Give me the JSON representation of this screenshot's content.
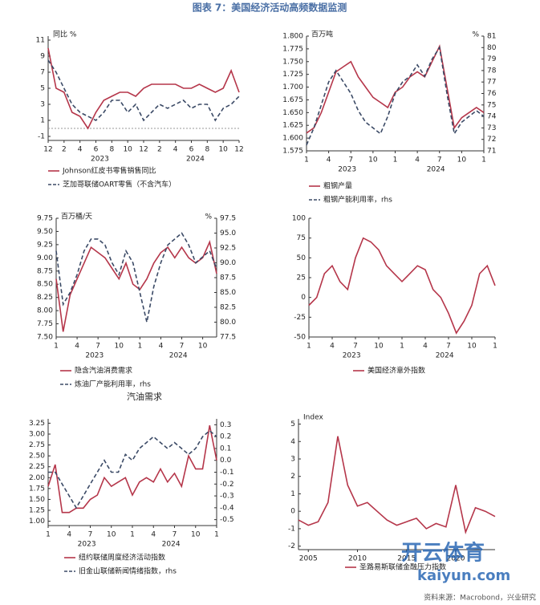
{
  "title": "图表 7：美国经济活动高频数据监测",
  "caption": "汽油需求",
  "source": "资料来源：Macrobond，兴业研究",
  "watermark": [
    "开云体育",
    "kaiyun.com"
  ],
  "chart_data": [
    {
      "type": "line",
      "ylabel": "同比 %",
      "zero_line": true,
      "categories": [
        "12",
        null,
        "2",
        null,
        "4",
        null,
        "6",
        null,
        "8",
        null,
        "10",
        null,
        "12",
        null,
        "2",
        null,
        "4",
        null,
        "6",
        null,
        "8",
        null,
        "10",
        null,
        "12"
      ],
      "groups": [
        {
          "label": "2023",
          "span": [
            1,
            12
          ]
        },
        {
          "label": "2024",
          "span": [
            13,
            24
          ]
        }
      ],
      "ylim": [
        -1.5,
        11.5
      ],
      "yticks": [
        -1,
        1,
        3,
        5,
        7,
        9,
        11
      ],
      "series": [
        {
          "name": "Johnson红皮书零售销售同比",
          "color": "#b5364a",
          "values": [
            10,
            5,
            4.5,
            2,
            1.5,
            0,
            2,
            3.5,
            4,
            4.5,
            4.5,
            4,
            5,
            5.5,
            5.5,
            5.5,
            5.5,
            5,
            5,
            5.5,
            5,
            4.5,
            5,
            7.2,
            4.5
          ]
        },
        {
          "name": "芝加哥联储OART零售（不含汽车）",
          "color": "#3b4a66",
          "dash": true,
          "values": [
            8.5,
            7,
            5,
            3,
            2,
            1.5,
            1,
            2,
            3.5,
            3.5,
            2,
            3,
            1,
            2,
            3,
            2.5,
            3,
            3.5,
            2.5,
            3,
            3,
            1,
            2.5,
            3,
            4
          ]
        }
      ]
    },
    {
      "type": "line",
      "ylabel": "百万吨",
      "y2label": "%",
      "categories": [
        "1",
        null,
        null,
        "4",
        null,
        null,
        "7",
        null,
        null,
        "10",
        null,
        null,
        "1",
        null,
        null,
        "4",
        null,
        null,
        "7",
        null,
        null,
        "10",
        null,
        null,
        "1"
      ],
      "groups": [
        {
          "label": "2023",
          "span": [
            0,
            11
          ]
        },
        {
          "label": "2024",
          "span": [
            12,
            23
          ]
        }
      ],
      "ylim": [
        1.575,
        1.8
      ],
      "yticks": [
        1.575,
        {
          "value": 1.6,
          "label": "1.600"
        },
        1.625,
        {
          "value": 1.65,
          "label": "1.650"
        },
        1.675,
        {
          "value": 1.7,
          "label": "1.700"
        },
        1.725,
        {
          "value": 1.75,
          "label": "1.750"
        },
        1.775,
        {
          "value": 1.8,
          "label": "1.800"
        }
      ],
      "y2lim": [
        71,
        81
      ],
      "y2ticks": [
        71,
        72,
        73,
        74,
        75,
        76,
        77,
        78,
        79,
        80,
        81
      ],
      "series": [
        {
          "name": "粗钢产量",
          "color": "#b5364a",
          "values": [
            1.61,
            1.62,
            1.65,
            1.69,
            1.73,
            1.74,
            1.75,
            1.72,
            1.7,
            1.68,
            1.67,
            1.66,
            1.69,
            1.7,
            1.72,
            1.73,
            1.72,
            1.75,
            1.78,
            1.7,
            1.62,
            1.64,
            1.65,
            1.66,
            1.65
          ]
        },
        {
          "name": "粗钢产能利用率，rhs",
          "color": "#3b4a66",
          "dash": true,
          "axis": "y2",
          "values": [
            71.5,
            73,
            75,
            77,
            78,
            77,
            76,
            74.5,
            73.5,
            73,
            72.5,
            74,
            76,
            77,
            77.5,
            78.5,
            77.5,
            79,
            80,
            76,
            72.5,
            73.5,
            74,
            74.5,
            74
          ]
        }
      ]
    },
    {
      "type": "line",
      "ylabel": "百万桶/天",
      "y2label": "%",
      "categories": [
        "1",
        null,
        null,
        "4",
        null,
        null,
        "7",
        null,
        null,
        "10",
        null,
        null,
        "1",
        null,
        null,
        "4",
        null,
        null,
        "7",
        null,
        null,
        "10",
        null,
        null
      ],
      "groups": [
        {
          "label": "2023",
          "span": [
            0,
            11
          ]
        },
        {
          "label": "2024",
          "span": [
            12,
            23
          ]
        }
      ],
      "ylim": [
        7.5,
        9.75
      ],
      "yticks": [
        {
          "value": 7.5,
          "label": "7.50"
        },
        7.75,
        {
          "value": 8,
          "label": "8.00"
        },
        8.25,
        {
          "value": 8.5,
          "label": "8.50"
        },
        8.75,
        {
          "value": 9,
          "label": "9.00"
        },
        9.25,
        {
          "value": 9.5,
          "label": "9.50"
        },
        9.75
      ],
      "y2lim": [
        77.5,
        97.5
      ],
      "y2ticks": [
        77.5,
        {
          "value": 80,
          "label": "80.0"
        },
        82.5,
        {
          "value": 85,
          "label": "85.0"
        },
        87.5,
        {
          "value": 90,
          "label": "90.0"
        },
        92.5,
        {
          "value": 95,
          "label": "95.0"
        },
        97.5
      ],
      "series": [
        {
          "name": "隐含汽油消费需求",
          "color": "#b5364a",
          "values": [
            8.6,
            7.6,
            8.3,
            8.6,
            8.9,
            9.2,
            9.1,
            9,
            8.8,
            8.6,
            8.9,
            8.5,
            8.4,
            8.6,
            8.9,
            9.1,
            9.2,
            9,
            9.2,
            9,
            8.9,
            9,
            9.3,
            8.7
          ]
        },
        {
          "name": "炼油厂产能利用率，rhs",
          "color": "#3b4a66",
          "dash": true,
          "axis": "y2",
          "values": [
            92,
            83,
            85,
            88,
            92,
            94,
            94,
            93,
            90,
            88,
            92,
            90,
            85,
            80,
            86,
            90,
            93,
            94,
            95,
            93,
            90,
            91,
            92,
            89
          ]
        }
      ]
    },
    {
      "type": "line",
      "categories": [
        "1",
        null,
        null,
        "4",
        null,
        null,
        "7",
        null,
        null,
        "10",
        null,
        null,
        "1",
        null,
        null,
        "4",
        null,
        null,
        "7",
        null,
        null,
        "10",
        null,
        null,
        "1"
      ],
      "groups": [
        {
          "label": "2023",
          "span": [
            0,
            11
          ]
        },
        {
          "label": "2024",
          "span": [
            12,
            23
          ]
        }
      ],
      "ylim": [
        -50,
        100
      ],
      "yticks": [
        -50,
        -25,
        0,
        25,
        50,
        75,
        100
      ],
      "series": [
        {
          "name": "美国经济意外指数",
          "color": "#b5364a",
          "values": [
            -10,
            0,
            30,
            40,
            20,
            10,
            50,
            75,
            70,
            60,
            40,
            30,
            20,
            30,
            40,
            35,
            10,
            0,
            -20,
            -45,
            -30,
            -10,
            30,
            40,
            15
          ]
        }
      ]
    },
    {
      "type": "line",
      "categories": [
        "1",
        null,
        null,
        "4",
        null,
        null,
        "7",
        null,
        null,
        "10",
        null,
        null,
        "1",
        null,
        null,
        "4",
        null,
        null,
        "7",
        null,
        null,
        "10",
        null,
        null,
        "1"
      ],
      "groups": [
        {
          "label": "2023",
          "span": [
            0,
            11
          ]
        },
        {
          "label": "2024",
          "span": [
            12,
            23
          ]
        }
      ],
      "ylim": [
        0.9,
        3.35
      ],
      "yticks": [
        {
          "value": 1,
          "label": "1.00"
        },
        1.25,
        {
          "value": 1.5,
          "label": "1.50"
        },
        1.75,
        {
          "value": 2,
          "label": "2.00"
        },
        2.25,
        {
          "value": 2.5,
          "label": "2.50"
        },
        2.75,
        {
          "value": 3,
          "label": "3.00"
        },
        3.25
      ],
      "y2lim": [
        -0.55,
        0.35
      ],
      "y2ticks": [
        -0.5,
        -0.4,
        -0.3,
        -0.2,
        -0.1,
        {
          "value": 0,
          "label": "0.0"
        },
        0.1,
        0.2,
        0.3
      ],
      "series": [
        {
          "name": "纽约联储周度经济活动指数",
          "color": "#b5364a",
          "values": [
            1.8,
            2.3,
            1.2,
            1.2,
            1.3,
            1.3,
            1.5,
            1.6,
            2,
            1.8,
            1.9,
            2,
            1.6,
            1.9,
            2,
            1.9,
            2.2,
            1.9,
            2.1,
            1.8,
            2.5,
            2.2,
            2.2,
            3.2,
            2.4
          ]
        },
        {
          "name": "旧金山联储新闻情绪指数，rhs",
          "color": "#3b4a66",
          "dash": true,
          "axis": "y2",
          "values": [
            -0.1,
            -0.1,
            -0.2,
            -0.3,
            -0.4,
            -0.3,
            -0.2,
            -0.1,
            0,
            -0.1,
            -0.1,
            0.05,
            0,
            0.1,
            0.15,
            0.2,
            0.15,
            0.1,
            0.15,
            0.1,
            0.05,
            0.1,
            0.2,
            0.25,
            0.2
          ]
        }
      ]
    },
    {
      "type": "line",
      "ylabel": "Index",
      "categories": [
        null,
        "2005",
        null,
        null,
        null,
        null,
        "2010",
        null,
        null,
        null,
        null,
        "2015",
        null,
        null,
        null,
        null,
        "2020",
        null,
        null,
        null,
        null
      ],
      "ylim": [
        -2.2,
        5.3
      ],
      "yticks": [
        -2,
        -1,
        0,
        1,
        2,
        3,
        4,
        5
      ],
      "series": [
        {
          "name": "圣路易斯联储金融压力指数",
          "color": "#b5364a",
          "values": [
            -0.5,
            -0.8,
            -0.6,
            0.5,
            4.3,
            1.5,
            0.3,
            0.5,
            0,
            -0.5,
            -0.8,
            -0.6,
            -0.4,
            -1,
            -0.7,
            -0.9,
            1.5,
            -1.2,
            0.2,
            0,
            -0.3
          ]
        }
      ]
    }
  ]
}
